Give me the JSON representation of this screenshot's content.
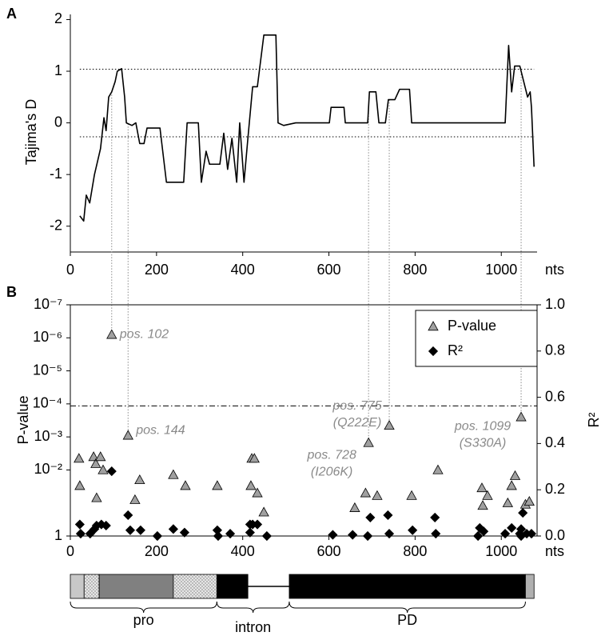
{
  "chart_data": [
    {
      "type": "line",
      "panel_label": "A",
      "ylabel": "Tajima's D",
      "xunit": "nts",
      "color": "#000000",
      "xlim": [
        0,
        1083
      ],
      "xticks": [
        0,
        200,
        400,
        600,
        800,
        1000
      ],
      "ylim": [
        -2.5,
        2.1
      ],
      "yticks": [
        -2,
        -1,
        0,
        1,
        2
      ],
      "ref_lines": [
        1.04,
        -0.27
      ],
      "x": [
        22,
        31,
        37,
        45,
        56,
        63,
        70,
        78,
        83,
        89,
        96,
        104,
        109,
        119,
        126,
        130,
        143,
        152,
        161,
        171,
        178,
        208,
        223,
        263,
        271,
        297,
        304,
        315,
        323,
        347,
        356,
        365,
        375,
        386,
        393,
        403,
        412,
        423,
        434,
        449,
        477,
        482,
        495,
        523,
        601,
        605,
        635,
        638,
        690,
        694,
        709,
        716,
        731,
        738,
        753,
        764,
        787,
        792,
        1009,
        1017,
        1024,
        1031,
        1043,
        1052,
        1061,
        1067,
        1070,
        1076
      ],
      "values": [
        -1.8,
        -1.9,
        -1.4,
        -1.55,
        -1.0,
        -0.75,
        -0.5,
        0.1,
        -0.15,
        0.5,
        0.6,
        0.8,
        1.0,
        1.05,
        0.5,
        0.0,
        -0.05,
        0.0,
        -0.4,
        -0.4,
        -0.1,
        -0.1,
        -1.15,
        -1.15,
        0.0,
        0.0,
        -1.15,
        -0.55,
        -0.8,
        -0.8,
        -0.2,
        -0.9,
        -0.3,
        -1.15,
        0.0,
        -1.15,
        -0.3,
        0.7,
        0.7,
        1.7,
        1.7,
        0.0,
        -0.05,
        0.0,
        0.0,
        0.3,
        0.3,
        0.0,
        0.0,
        0.6,
        0.6,
        0.0,
        0.0,
        0.45,
        0.45,
        0.65,
        0.65,
        0.0,
        0.0,
        1.5,
        0.6,
        1.1,
        1.1,
        0.8,
        0.5,
        0.6,
        0.3,
        -0.85
      ]
    },
    {
      "type": "scatter",
      "panel_label": "B",
      "ylabel": "P-value",
      "y2label": "R²",
      "xunit": "nts",
      "xlim": [
        0,
        1083
      ],
      "xticks": [
        0,
        200,
        400,
        600,
        800,
        1000
      ],
      "log_y": true,
      "ylim": [
        1,
        1e-07
      ],
      "yticks": [
        1,
        {
          "value": 0.01,
          "label": "10⁻²"
        },
        {
          "value": 0.001,
          "label": "10⁻³"
        },
        {
          "value": 0.0001,
          "label": "10⁻⁴"
        },
        {
          "value": 1e-05,
          "label": "10⁻⁵"
        },
        {
          "value": 1e-06,
          "label": "10⁻⁶"
        },
        {
          "value": 1e-07,
          "label": "10⁻⁷"
        }
      ],
      "y2lim": [
        0,
        1
      ],
      "y2ticks": [
        {
          "value": 0,
          "label": "0.0"
        },
        0.2,
        0.4,
        0.6,
        0.8,
        {
          "value": 1,
          "label": "1.0"
        }
      ],
      "threshold": 0.000115,
      "legend": "top-right",
      "series": [
        {
          "name": "P-value",
          "marker": "triangle",
          "color": "#a0a0a0",
          "x": [
            20,
            22,
            54,
            59,
            61,
            70,
            76,
            96,
            134,
            150,
            161,
            239,
            267,
            341,
            419,
            421,
            427,
            434,
            449,
            660,
            685,
            692,
            712,
            740,
            792,
            853,
            955,
            957,
            968,
            1015,
            1024,
            1032,
            1046,
            1056,
            1065
          ],
          "values": [
            0.0045,
            0.03,
            0.004,
            0.0065,
            0.07,
            0.004,
            0.01,
            8e-07,
            0.0009,
            0.08,
            0.02,
            0.014,
            0.03,
            0.03,
            0.03,
            0.0045,
            0.0045,
            0.05,
            0.19,
            0.14,
            0.05,
            0.0015,
            0.06,
            0.00045,
            0.06,
            0.01,
            0.035,
            0.12,
            0.06,
            0.1,
            0.03,
            0.015,
            0.00025,
            0.11,
            0.09
          ]
        },
        {
          "name": "R²",
          "marker": "diamond",
          "color": "#000000",
          "axis": "y2",
          "x": [
            22,
            24,
            46,
            56,
            61,
            72,
            83,
            96,
            134,
            139,
            163,
            202,
            239,
            265,
            341,
            343,
            371,
            417,
            417,
            423,
            434,
            456,
            609,
            655,
            690,
            696,
            737,
            740,
            794,
            848,
            846,
            946,
            950,
            959,
            1009,
            1024,
            1043,
            1046,
            1046,
            1050,
            1059,
            1070
          ],
          "values": [
            0.05,
            0.01,
            0.01,
            0.03,
            0.045,
            0.05,
            0.045,
            0.28,
            0.09,
            0.025,
            0.025,
            0.0,
            0.03,
            0.015,
            0.025,
            0.0,
            0.01,
            0.05,
            0.015,
            0.05,
            0.05,
            0.0,
            0.005,
            0.005,
            0.0,
            0.08,
            0.09,
            0.01,
            0.025,
            0.01,
            0.08,
            0.0,
            0.035,
            0.02,
            0.01,
            0.035,
            0.01,
            0.03,
            0.0,
            0.1,
            0.01,
            0.01
          ]
        }
      ],
      "annotations": [
        {
          "lines": [
            "pos. 102"
          ],
          "x": 96,
          "p": 8e-07
        },
        {
          "lines": [
            "pos. 144"
          ],
          "x": 134,
          "p": 0.0009
        },
        {
          "lines": [
            "pos. 775",
            "(Q222E)"
          ],
          "x": 740,
          "p": 0.00045
        },
        {
          "lines": [
            "pos. 728",
            "(I206K)"
          ],
          "x": 692,
          "p": 0.0015
        },
        {
          "lines": [
            "pos. 1099",
            "(S330A)"
          ],
          "x": 1046,
          "p": 0.00025
        }
      ],
      "gene_map": {
        "segments": [
          {
            "start": 0,
            "end": 32,
            "fill": "#c8c8c8"
          },
          {
            "start": 32,
            "end": 67,
            "fill": "hatch"
          },
          {
            "start": 67,
            "end": 239,
            "fill": "#808080"
          },
          {
            "start": 239,
            "end": 340,
            "fill": "hatch"
          },
          {
            "start": 340,
            "end": 412,
            "fill": "#000000"
          },
          {
            "start": 412,
            "end": 508,
            "fill": "line"
          },
          {
            "start": 508,
            "end": 1056,
            "fill": "#000000"
          },
          {
            "start": 1056,
            "end": 1076,
            "fill": "#b0b0b0"
          }
        ],
        "regions": [
          {
            "label": "pro",
            "start": 0,
            "end": 340
          },
          {
            "label": "intron",
            "start": 340,
            "end": 508
          },
          {
            "label": "PD",
            "start": 508,
            "end": 1056
          }
        ]
      }
    }
  ]
}
